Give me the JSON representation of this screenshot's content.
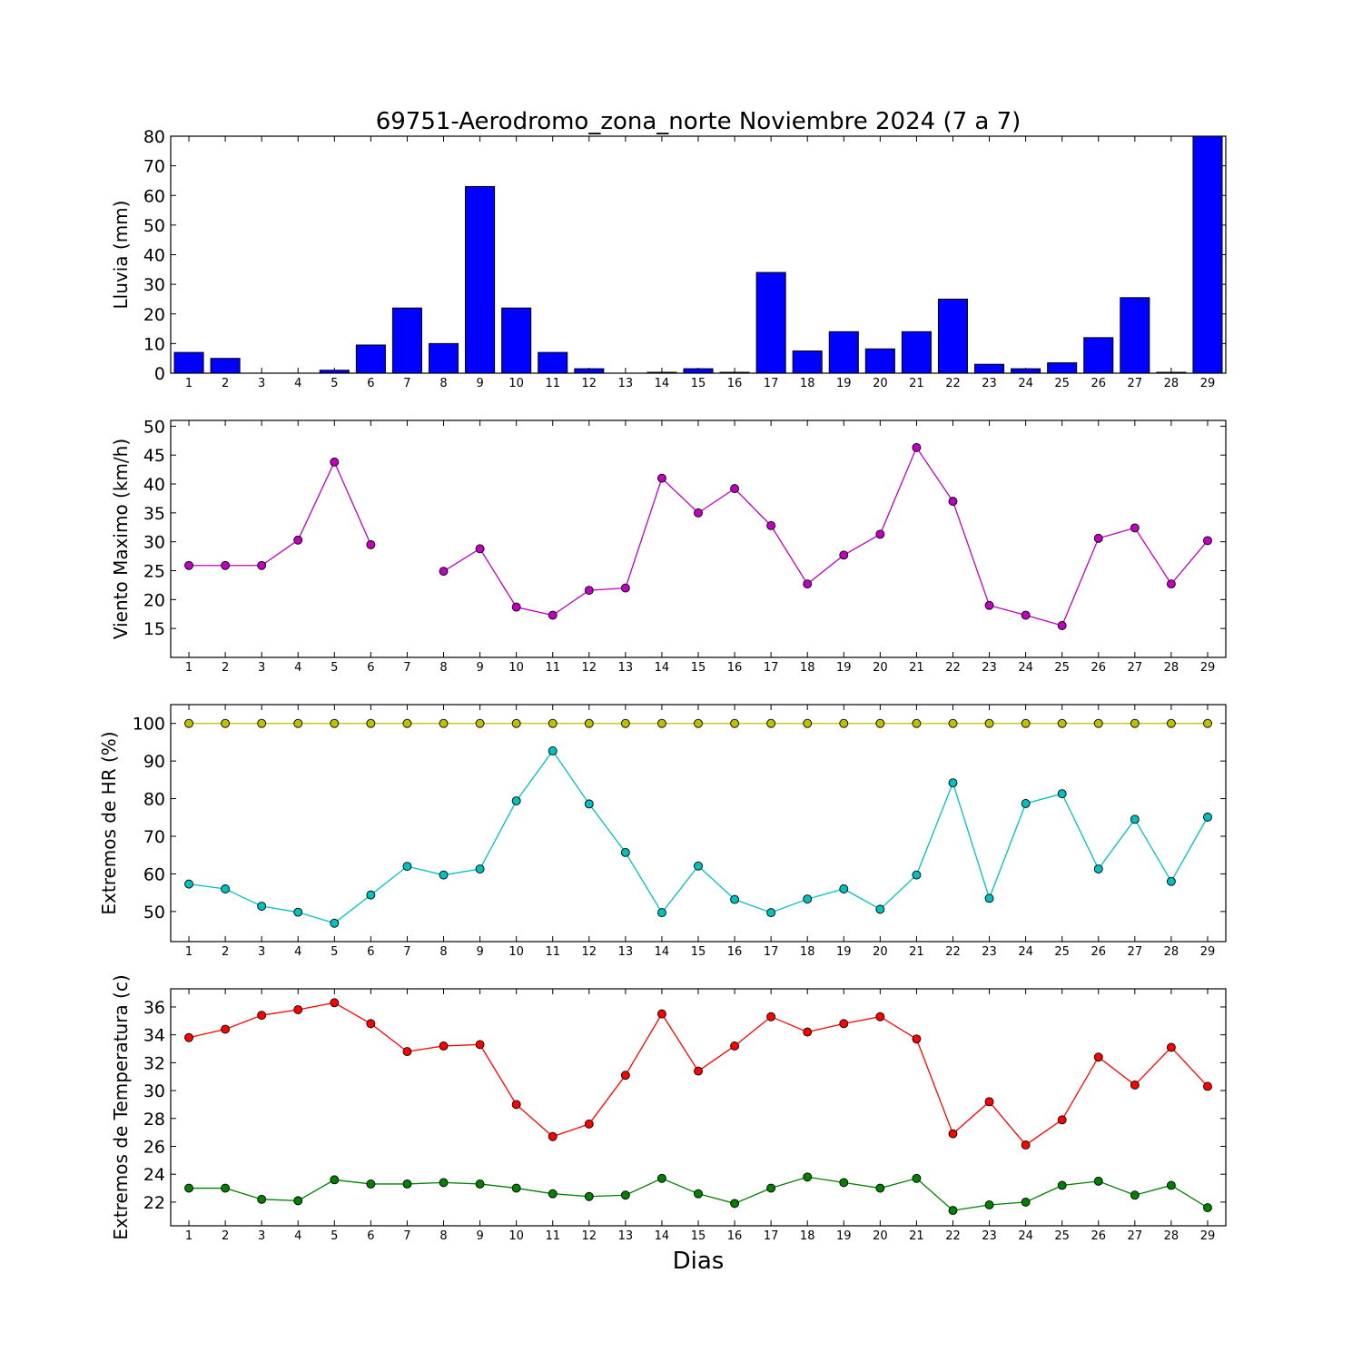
{
  "figure_title": "69751-Aerodromo_zona_norte Noviembre 2024  (7 a 7)",
  "xlabel": "Dias",
  "colors": {
    "rain": "#0000ff",
    "wind": "#bf00bf",
    "hr_max": "#bfbf00",
    "hr_min": "#00bfbf",
    "t_max": "#ff0000",
    "t_min": "#008000"
  },
  "chart_data": [
    {
      "type": "bar",
      "ylabel": "Lluvia (mm)",
      "xlim": [
        0.5,
        29.5
      ],
      "ylim": [
        0,
        80
      ],
      "yticks": [
        0,
        10,
        20,
        30,
        40,
        50,
        60,
        70,
        80
      ],
      "categories": [
        "1",
        "2",
        "3",
        "4",
        "5",
        "6",
        "7",
        "8",
        "9",
        "10",
        "11",
        "12",
        "13",
        "14",
        "15",
        "16",
        "17",
        "18",
        "19",
        "20",
        "21",
        "22",
        "23",
        "24",
        "25",
        "26",
        "27",
        "28",
        "29"
      ],
      "series": [
        {
          "values": [
            7,
            5,
            0,
            0,
            1,
            9.5,
            22,
            10,
            63,
            22,
            7,
            1.5,
            0,
            0.3,
            1.5,
            0.3,
            34,
            7.5,
            14,
            8.2,
            14,
            25,
            3,
            1.5,
            3.5,
            12,
            25.5,
            0.3,
            80
          ],
          "color": "rain"
        }
      ]
    },
    {
      "type": "line",
      "ylabel": "Viento Maximo (km/h)",
      "xlim": [
        0.5,
        29.5
      ],
      "ylim": [
        10,
        51
      ],
      "yticks": [
        15,
        20,
        25,
        30,
        35,
        40,
        45,
        50
      ],
      "categories": [
        "1",
        "2",
        "3",
        "4",
        "5",
        "6",
        "7",
        "8",
        "9",
        "10",
        "11",
        "12",
        "13",
        "14",
        "15",
        "16",
        "17",
        "18",
        "19",
        "20",
        "21",
        "22",
        "23",
        "24",
        "25",
        "26",
        "27",
        "28",
        "29"
      ],
      "series": [
        {
          "values": [
            25.9,
            25.9,
            25.9,
            30.3,
            43.8,
            29.5,
            null,
            24.9,
            28.8,
            18.7,
            17.3,
            21.6,
            22,
            41,
            35,
            39.2,
            32.8,
            22.7,
            27.7,
            31.3,
            46.3,
            37,
            19,
            17.3,
            15.5,
            30.6,
            32.4,
            22.7,
            30.2
          ],
          "color": "wind"
        }
      ]
    },
    {
      "type": "line",
      "ylabel": "Extremos de HR (%)",
      "xlim": [
        0.5,
        29.5
      ],
      "ylim": [
        42,
        105
      ],
      "yticks": [
        50,
        60,
        70,
        80,
        90,
        100
      ],
      "categories": [
        "1",
        "2",
        "3",
        "4",
        "5",
        "6",
        "7",
        "8",
        "9",
        "10",
        "11",
        "12",
        "13",
        "14",
        "15",
        "16",
        "17",
        "18",
        "19",
        "20",
        "21",
        "22",
        "23",
        "24",
        "25",
        "26",
        "27",
        "28",
        "29"
      ],
      "series": [
        {
          "values": [
            100,
            100,
            100,
            100,
            100,
            100,
            100,
            100,
            100,
            100,
            100,
            100,
            100,
            100,
            100,
            100,
            100,
            100,
            100,
            100,
            100,
            100,
            100,
            100,
            100,
            100,
            100,
            100,
            100
          ],
          "color": "hr_max"
        },
        {
          "values": [
            57.3,
            56,
            51.4,
            49.8,
            46.9,
            54.4,
            62,
            59.7,
            61.3,
            79.4,
            92.7,
            78.6,
            65.7,
            49.7,
            62.1,
            53.2,
            49.7,
            53.3,
            56,
            50.6,
            59.7,
            84.2,
            53.5,
            78.7,
            81.3,
            61.3,
            74.5,
            58,
            75.1
          ],
          "color": "hr_min"
        }
      ]
    },
    {
      "type": "line",
      "ylabel": "Extremos de Temperatura (c)",
      "xlim": [
        0.5,
        29.5
      ],
      "ylim": [
        20.3,
        37.3
      ],
      "yticks": [
        22,
        24,
        26,
        28,
        30,
        32,
        34,
        36
      ],
      "categories": [
        "1",
        "2",
        "3",
        "4",
        "5",
        "6",
        "7",
        "8",
        "9",
        "10",
        "11",
        "12",
        "13",
        "14",
        "15",
        "16",
        "17",
        "18",
        "19",
        "20",
        "21",
        "22",
        "23",
        "24",
        "25",
        "26",
        "27",
        "28",
        "29"
      ],
      "series": [
        {
          "values": [
            33.8,
            34.4,
            35.4,
            35.8,
            36.3,
            34.8,
            32.8,
            33.2,
            33.3,
            29,
            26.7,
            27.6,
            31.1,
            35.5,
            31.4,
            33.2,
            35.3,
            34.2,
            34.8,
            35.3,
            33.7,
            26.9,
            29.2,
            26.1,
            27.9,
            32.4,
            30.4,
            33.1,
            30.3
          ],
          "color": "t_max"
        },
        {
          "values": [
            23,
            23,
            22.2,
            22.1,
            23.6,
            23.3,
            23.3,
            23.4,
            23.3,
            23,
            22.6,
            22.4,
            22.5,
            23.7,
            22.6,
            21.9,
            23,
            23.8,
            23.4,
            23,
            23.7,
            21.4,
            21.8,
            22,
            23.2,
            23.5,
            22.5,
            23.2,
            21.6
          ],
          "color": "t_min"
        }
      ]
    }
  ]
}
